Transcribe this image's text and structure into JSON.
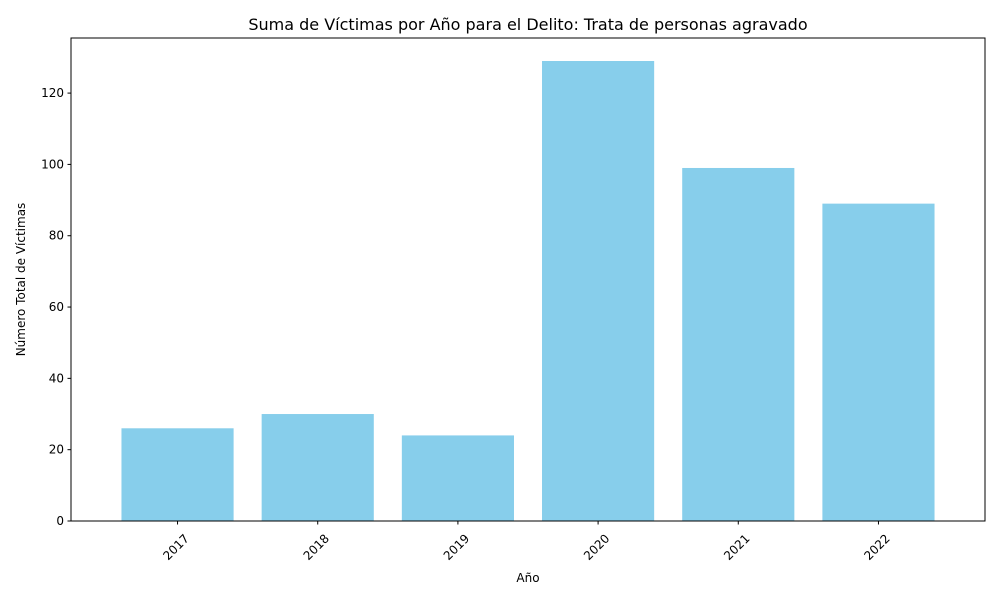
{
  "chart_data": {
    "type": "bar",
    "title": "Suma de Víctimas por Año para el Delito: Trata de personas agravado",
    "xlabel": "Año",
    "ylabel": "Número Total de Víctimas",
    "categories": [
      "2017",
      "2018",
      "2019",
      "2020",
      "2021",
      "2022"
    ],
    "values": [
      26,
      30,
      24,
      129,
      99,
      89
    ],
    "ylim": [
      0,
      135.45
    ],
    "yticks": [
      0,
      20,
      40,
      60,
      80,
      100,
      120
    ],
    "bar_color": "#87CEEB",
    "grid": false,
    "x_tick_rotation": 45
  }
}
